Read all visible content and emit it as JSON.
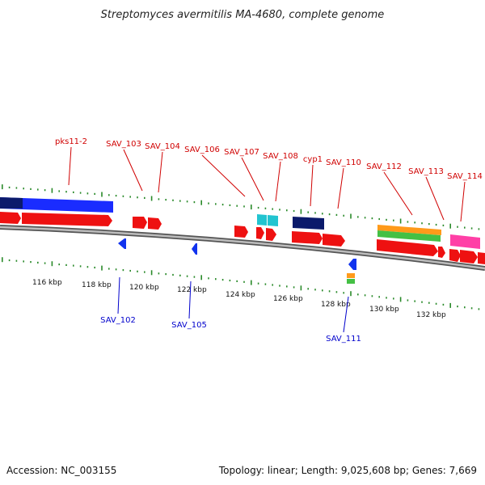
{
  "title": "Streptomyces avermitilis MA-4680, complete genome",
  "footer": {
    "accession": "Accession: NC_003155",
    "summary": "Topology: linear; Length: 9,025,608 bp; Genes: 7,669"
  },
  "scale": {
    "ticks": [
      "116 kbp",
      "118 kbp",
      "120 kbp",
      "122 kbp",
      "124 kbp",
      "126 kbp",
      "128 kbp",
      "130 kbp",
      "132 kbp"
    ]
  },
  "genes": {
    "top": [
      "pks11-2",
      "SAV_103",
      "SAV_104",
      "SAV_106",
      "SAV_107",
      "SAV_108",
      "cyp1",
      "SAV_110",
      "SAV_112",
      "SAV_113",
      "SAV_114"
    ],
    "bottom": [
      "SAV_102",
      "SAV_105",
      "SAV_111"
    ]
  },
  "colors": {
    "forward_gene": "#ee1111",
    "reverse_gene": "#1133ee",
    "top_label": "#d00000",
    "bottom_label": "#0000cc",
    "backbone": "#888888",
    "tick_mark": "#2a8a2a",
    "cds_blue": "#1a2cff",
    "cds_navy": "#0b1a6b",
    "cds_cyan": "#22c4d0",
    "cds_orange": "#ff9a1a",
    "cds_green": "#44c044",
    "cds_pink": "#ff3fa6"
  }
}
